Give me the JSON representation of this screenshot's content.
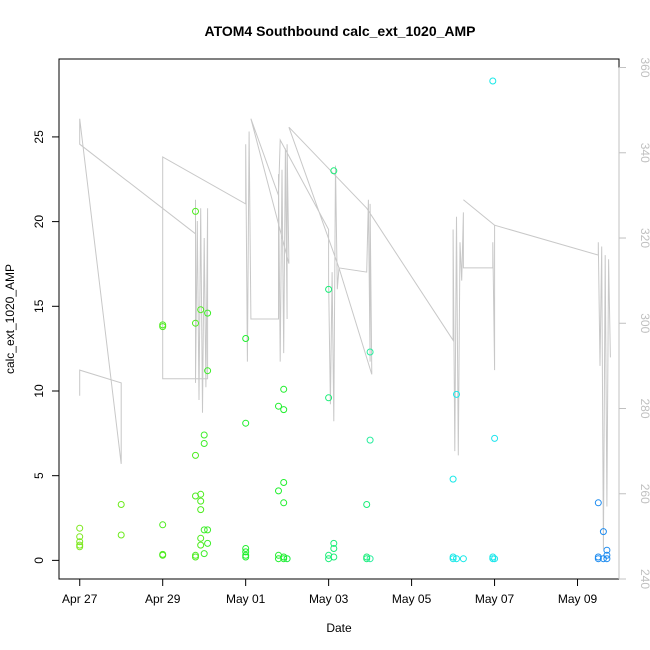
{
  "chart_data": {
    "type": "scatter",
    "title": "ATOM4 Southbound calc_ext_1020_AMP",
    "xlabel": "Date",
    "ylabel": "calc_ext_1020_AMP",
    "x_ticks": [
      "Apr 27",
      "Apr 29",
      "May 01",
      "May 03",
      "May 05",
      "May 07",
      "May 09"
    ],
    "y_ticks": [
      "0",
      "5",
      "10",
      "15",
      "20",
      "25"
    ],
    "y2_ticks": [
      "240",
      "260",
      "280",
      "300",
      "320",
      "340",
      "360"
    ],
    "ylim": [
      -1.1,
      29.6
    ],
    "y2lim": [
      240,
      362
    ],
    "grid": false,
    "colors": {
      "line": "#c8c8c8",
      "box": "#000000",
      "right_axis": "#c0c0c0"
    },
    "series": [
      {
        "type": "scatter",
        "points": [
          [
            "2024-04-27 00:00",
            1.9
          ],
          [
            "2024-04-27 00:00",
            1.4
          ],
          [
            "2024-04-27 00:00",
            1.1
          ],
          [
            "2024-04-27 00:00",
            0.9
          ],
          [
            "2024-04-27 00:00",
            0.8
          ],
          [
            "2024-04-28 00:00",
            3.3
          ],
          [
            "2024-04-28 00:00",
            1.5
          ],
          [
            "2024-04-29 00:00",
            13.9
          ],
          [
            "2024-04-29 00:00",
            13.8
          ],
          [
            "2024-04-29 00:00",
            2.1
          ],
          [
            "2024-04-29 00:00",
            0.35
          ],
          [
            "2024-04-29 00:00",
            0.3
          ],
          [
            "2024-04-29 19:00",
            20.6
          ],
          [
            "2024-04-29 19:00",
            14.0
          ],
          [
            "2024-04-29 19:00",
            6.2
          ],
          [
            "2024-04-29 19:00",
            3.8
          ],
          [
            "2024-04-29 19:00",
            0.3
          ],
          [
            "2024-04-29 19:00",
            0.2
          ],
          [
            "2024-04-29 22:00",
            14.8
          ],
          [
            "2024-04-29 22:00",
            3.9
          ],
          [
            "2024-04-29 22:00",
            3.5
          ],
          [
            "2024-04-29 22:00",
            3.0
          ],
          [
            "2024-04-29 22:00",
            1.3
          ],
          [
            "2024-04-29 22:00",
            0.9
          ],
          [
            "2024-04-30 00:00",
            7.4
          ],
          [
            "2024-04-30 00:00",
            6.9
          ],
          [
            "2024-04-30 00:00",
            1.8
          ],
          [
            "2024-04-30 00:00",
            0.4
          ],
          [
            "2024-04-30 02:00",
            14.6
          ],
          [
            "2024-04-30 02:00",
            11.2
          ],
          [
            "2024-04-30 02:00",
            1.8
          ],
          [
            "2024-04-30 02:00",
            1.0
          ],
          [
            "2024-05-01 00:00",
            13.1
          ],
          [
            "2024-05-01 00:00",
            8.1
          ],
          [
            "2024-05-01 00:00",
            0.7
          ],
          [
            "2024-05-01 00:00",
            0.5
          ],
          [
            "2024-05-01 00:00",
            0.3
          ],
          [
            "2024-05-01 00:00",
            0.2
          ],
          [
            "2024-05-01 19:00",
            9.1
          ],
          [
            "2024-05-01 19:00",
            4.1
          ],
          [
            "2024-05-01 19:00",
            0.3
          ],
          [
            "2024-05-01 19:00",
            0.1
          ],
          [
            "2024-05-01 22:00",
            10.1
          ],
          [
            "2024-05-01 22:00",
            8.9
          ],
          [
            "2024-05-01 22:00",
            4.6
          ],
          [
            "2024-05-01 22:00",
            3.4
          ],
          [
            "2024-05-01 22:00",
            0.2
          ],
          [
            "2024-05-01 22:00",
            0.1
          ],
          [
            "2024-05-02 00:00",
            0.1
          ],
          [
            "2024-05-03 00:00",
            16.0
          ],
          [
            "2024-05-03 00:00",
            9.6
          ],
          [
            "2024-05-03 00:00",
            0.3
          ],
          [
            "2024-05-03 00:00",
            0.1
          ],
          [
            "2024-05-03 03:00",
            23.0
          ],
          [
            "2024-05-03 03:00",
            1.0
          ],
          [
            "2024-05-03 03:00",
            0.7
          ],
          [
            "2024-05-03 03:00",
            0.2
          ],
          [
            "2024-05-03 22:00",
            3.3
          ],
          [
            "2024-05-03 22:00",
            0.2
          ],
          [
            "2024-05-03 22:00",
            0.1
          ],
          [
            "2024-05-04 00:00",
            12.3
          ],
          [
            "2024-05-04 00:00",
            7.1
          ],
          [
            "2024-05-04 00:00",
            0.1
          ],
          [
            "2024-05-06 00:00",
            4.8
          ],
          [
            "2024-05-06 00:00",
            0.2
          ],
          [
            "2024-05-06 00:00",
            0.1
          ],
          [
            "2024-05-06 02:00",
            9.8
          ],
          [
            "2024-05-06 02:00",
            0.1
          ],
          [
            "2024-05-06 06:00",
            0.1
          ],
          [
            "2024-05-06 23:00",
            28.3
          ],
          [
            "2024-05-06 23:00",
            0.2
          ],
          [
            "2024-05-06 23:00",
            0.1
          ],
          [
            "2024-05-07 00:00",
            7.2
          ],
          [
            "2024-05-07 00:00",
            0.1
          ],
          [
            "2024-05-09 12:00",
            3.4
          ],
          [
            "2024-05-09 12:00",
            0.2
          ],
          [
            "2024-05-09 12:00",
            0.1
          ],
          [
            "2024-05-09 15:00",
            1.7
          ],
          [
            "2024-05-09 15:00",
            0.1
          ],
          [
            "2024-05-09 17:00",
            0.6
          ],
          [
            "2024-05-09 17:00",
            0.3
          ],
          [
            "2024-05-09 17:00",
            0.1
          ]
        ]
      },
      {
        "type": "line",
        "axis": "right",
        "points": [
          [
            "2024-04-27 00:00",
            283
          ],
          [
            "2024-04-27 00:00",
            289
          ],
          [
            "2024-04-28 00:00",
            286
          ],
          [
            "2024-04-28 00:00",
            267
          ],
          [
            "2024-04-27 00:00",
            348
          ],
          [
            "2024-04-27 00:00",
            342
          ],
          [
            "2024-04-29 19:00",
            321
          ],
          [
            "2024-04-29 19:00",
            329
          ],
          [
            "2024-04-29 19:00",
            286
          ],
          [
            "2024-04-29 20:00",
            324
          ],
          [
            "2024-04-29 21:00",
            282
          ],
          [
            "2024-04-29 22:00",
            327
          ],
          [
            "2024-04-29 23:00",
            279
          ],
          [
            "2024-04-30 00:00",
            320
          ],
          [
            "2024-04-30 01:00",
            285
          ],
          [
            "2024-04-30 02:00",
            327
          ],
          [
            "2024-04-30 02:00",
            287
          ],
          [
            "2024-04-29 00:00",
            287
          ],
          [
            "2024-04-29 00:00",
            339
          ],
          [
            "2024-05-01 00:00",
            328
          ],
          [
            "2024-05-01 00:00",
            342
          ],
          [
            "2024-05-01 01:00",
            291
          ],
          [
            "2024-05-01 02:00",
            345
          ],
          [
            "2024-05-01 03:00",
            301
          ],
          [
            "2024-05-01 19:00",
            301
          ],
          [
            "2024-05-01 19:00",
            335
          ],
          [
            "2024-05-01 20:00",
            291
          ],
          [
            "2024-05-01 21:00",
            336
          ],
          [
            "2024-05-01 22:00",
            293
          ],
          [
            "2024-05-01 23:00",
            341
          ],
          [
            "2024-05-02 00:00",
            301
          ],
          [
            "2024-05-02 00:00",
            342
          ],
          [
            "2024-05-02 01:00",
            314
          ],
          [
            "2024-05-01 03:00",
            348
          ],
          [
            "2024-05-01 19:00",
            330
          ],
          [
            "2024-05-01 20:00",
            343
          ],
          [
            "2024-05-03 00:00",
            322
          ],
          [
            "2024-05-03 00:00",
            310
          ],
          [
            "2024-05-03 01:00",
            281
          ],
          [
            "2024-05-03 02:00",
            312
          ],
          [
            "2024-05-03 03:00",
            277
          ],
          [
            "2024-05-03 04:00",
            337
          ],
          [
            "2024-05-03 05:00",
            308
          ],
          [
            "2024-05-03 06:00",
            313
          ],
          [
            "2024-05-03 22:00",
            312
          ],
          [
            "2024-05-03 23:00",
            329
          ],
          [
            "2024-05-04 00:00",
            291
          ],
          [
            "2024-05-04 00:00",
            328
          ],
          [
            "2024-05-04 01:00",
            288
          ],
          [
            "2024-05-03 06:00",
            313
          ],
          [
            "2024-05-02 01:00",
            346
          ],
          [
            "2024-05-03 22:00",
            327
          ],
          [
            "2024-05-06 00:00",
            296
          ],
          [
            "2024-05-06 00:00",
            322
          ],
          [
            "2024-05-06 01:00",
            270
          ],
          [
            "2024-05-06 02:00",
            325
          ],
          [
            "2024-05-06 03:00",
            269
          ],
          [
            "2024-05-06 04:00",
            319
          ],
          [
            "2024-05-06 05:00",
            310
          ],
          [
            "2024-05-06 06:00",
            326
          ],
          [
            "2024-05-06 06:00",
            313
          ],
          [
            "2024-05-06 23:00",
            313
          ],
          [
            "2024-05-06 23:00",
            319
          ],
          [
            "2024-05-07 00:00",
            289
          ],
          [
            "2024-05-07 00:00",
            323
          ],
          [
            "2024-05-06 06:00",
            329
          ],
          [
            "2024-05-07 00:00",
            323
          ],
          [
            "2024-05-09 12:00",
            316
          ],
          [
            "2024-05-09 12:00",
            319
          ],
          [
            "2024-05-09 13:00",
            290
          ],
          [
            "2024-05-09 14:00",
            318
          ],
          [
            "2024-05-09 15:00",
            247
          ],
          [
            "2024-05-09 16:00",
            316
          ],
          [
            "2024-05-09 17:00",
            257
          ],
          [
            "2024-05-09 18:00",
            315
          ],
          [
            "2024-05-09 19:00",
            292
          ]
        ]
      }
    ]
  }
}
